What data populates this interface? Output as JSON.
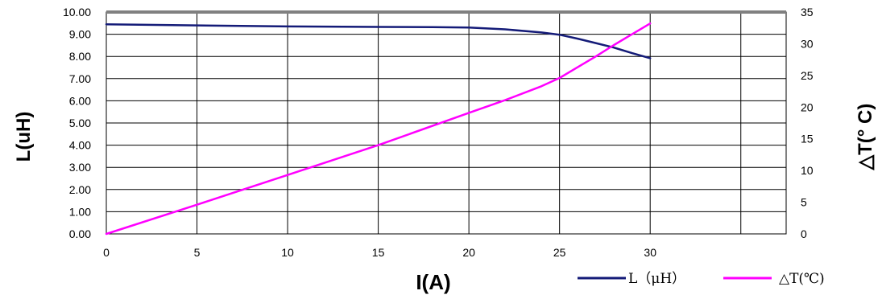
{
  "chart_data": {
    "type": "line",
    "xlabel": "I(A)",
    "ylabel_left": "L(uH)",
    "ylabel_right": "△T(° C)",
    "xlim": [
      0,
      37.5
    ],
    "x_ticks": [
      "0",
      "5",
      "10",
      "15",
      "20",
      "25",
      "30"
    ],
    "ylim_left": [
      0,
      10
    ],
    "y_left_ticks": [
      "0.00",
      "1.00",
      "2.00",
      "3.00",
      "4.00",
      "5.00",
      "6.00",
      "7.00",
      "8.00",
      "9.00",
      "10.00"
    ],
    "ylim_right": [
      0,
      35
    ],
    "y_right_ticks": [
      "0",
      "5",
      "10",
      "15",
      "20",
      "25",
      "30",
      "35"
    ],
    "grid": true,
    "legend_position": "bottom-right",
    "series": [
      {
        "name": "L（μH）",
        "axis": "left",
        "color": "#141b78",
        "x": [
          0,
          5,
          10,
          15,
          18,
          20,
          22,
          24,
          25,
          26,
          27,
          28,
          29,
          30
        ],
        "y": [
          9.45,
          9.4,
          9.35,
          9.33,
          9.32,
          9.3,
          9.22,
          9.08,
          8.98,
          8.8,
          8.6,
          8.4,
          8.15,
          7.92
        ]
      },
      {
        "name": "△T(℃)",
        "axis": "right",
        "color": "#ff00ff",
        "x": [
          0,
          5,
          10,
          15,
          20,
          22,
          24,
          25,
          26,
          27,
          28,
          29,
          30
        ],
        "y": [
          0,
          4.6,
          9.3,
          14.0,
          19.1,
          21.1,
          23.3,
          24.6,
          26.3,
          28.0,
          29.8,
          31.5,
          33.2
        ]
      }
    ]
  }
}
